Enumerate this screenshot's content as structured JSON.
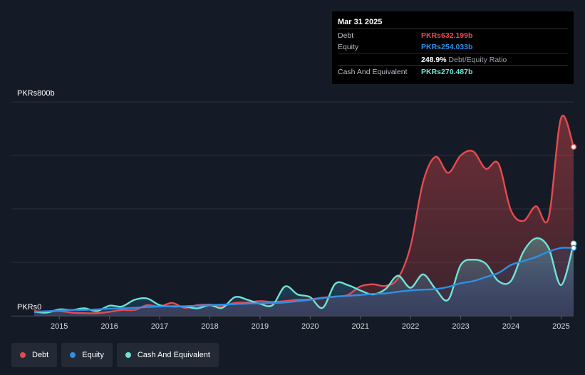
{
  "tooltip": {
    "date": "Mar 31 2025",
    "debt_label": "Debt",
    "debt_value": "PKRs632.199b",
    "equity_label": "Equity",
    "equity_value": "PKRs254.033b",
    "ratio_value": "248.9%",
    "ratio_label": "Debt/Equity Ratio",
    "cash_label": "Cash And Equivalent",
    "cash_value": "PKRs270.487b"
  },
  "colors": {
    "debt": "#e64a4f",
    "equity": "#2e8fe6",
    "cash": "#6fe3d5",
    "background": "#151b26",
    "grid": "#2b313b"
  },
  "chart_data": {
    "type": "area",
    "y_top_label": "PKRs800b",
    "y_bottom_label": "PKRs0",
    "ylim": [
      0,
      800
    ],
    "gridlines": [
      0,
      200,
      400,
      600,
      800
    ],
    "x_ticks": [
      "2015",
      "2016",
      "2017",
      "2018",
      "2019",
      "2020",
      "2021",
      "2022",
      "2023",
      "2024",
      "2025"
    ],
    "x_tick_values": [
      2015,
      2016,
      2017,
      2018,
      2019,
      2020,
      2021,
      2022,
      2023,
      2024,
      2025
    ],
    "xlim": [
      2014.5,
      2025.25
    ],
    "series": [
      {
        "name": "Debt",
        "key": "debt",
        "values": [
          [
            2014.5,
            18
          ],
          [
            2014.75,
            15
          ],
          [
            2015.0,
            18
          ],
          [
            2015.25,
            12
          ],
          [
            2015.5,
            10
          ],
          [
            2015.75,
            10
          ],
          [
            2016.0,
            15
          ],
          [
            2016.25,
            22
          ],
          [
            2016.5,
            22
          ],
          [
            2016.75,
            40
          ],
          [
            2017.0,
            35
          ],
          [
            2017.25,
            48
          ],
          [
            2017.5,
            30
          ],
          [
            2017.75,
            40
          ],
          [
            2018.0,
            42
          ],
          [
            2018.25,
            38
          ],
          [
            2018.5,
            48
          ],
          [
            2018.75,
            50
          ],
          [
            2019.0,
            55
          ],
          [
            2019.25,
            52
          ],
          [
            2019.5,
            55
          ],
          [
            2019.75,
            60
          ],
          [
            2020.0,
            62
          ],
          [
            2020.25,
            68
          ],
          [
            2020.5,
            72
          ],
          [
            2020.75,
            78
          ],
          [
            2021.0,
            110
          ],
          [
            2021.25,
            118
          ],
          [
            2021.5,
            112
          ],
          [
            2021.75,
            140
          ],
          [
            2022.0,
            260
          ],
          [
            2022.25,
            500
          ],
          [
            2022.5,
            595
          ],
          [
            2022.75,
            535
          ],
          [
            2023.0,
            600
          ],
          [
            2023.25,
            615
          ],
          [
            2023.5,
            550
          ],
          [
            2023.75,
            570
          ],
          [
            2024.0,
            395
          ],
          [
            2024.25,
            355
          ],
          [
            2024.5,
            410
          ],
          [
            2024.75,
            365
          ],
          [
            2025.0,
            740
          ],
          [
            2025.25,
            632
          ]
        ]
      },
      {
        "name": "Equity",
        "key": "equity",
        "values": [
          [
            2014.5,
            15
          ],
          [
            2014.75,
            17
          ],
          [
            2015.0,
            20
          ],
          [
            2015.25,
            22
          ],
          [
            2015.5,
            22
          ],
          [
            2015.75,
            24
          ],
          [
            2016.0,
            27
          ],
          [
            2016.25,
            28
          ],
          [
            2016.5,
            30
          ],
          [
            2016.75,
            33
          ],
          [
            2017.0,
            35
          ],
          [
            2017.25,
            36
          ],
          [
            2017.5,
            36
          ],
          [
            2017.75,
            38
          ],
          [
            2018.0,
            40
          ],
          [
            2018.25,
            42
          ],
          [
            2018.5,
            44
          ],
          [
            2018.75,
            46
          ],
          [
            2019.0,
            47
          ],
          [
            2019.25,
            48
          ],
          [
            2019.5,
            50
          ],
          [
            2019.75,
            55
          ],
          [
            2020.0,
            60
          ],
          [
            2020.25,
            66
          ],
          [
            2020.5,
            72
          ],
          [
            2020.75,
            75
          ],
          [
            2021.0,
            78
          ],
          [
            2021.25,
            82
          ],
          [
            2021.5,
            84
          ],
          [
            2021.75,
            90
          ],
          [
            2022.0,
            95
          ],
          [
            2022.25,
            98
          ],
          [
            2022.5,
            100
          ],
          [
            2022.75,
            108
          ],
          [
            2023.0,
            122
          ],
          [
            2023.25,
            130
          ],
          [
            2023.5,
            145
          ],
          [
            2023.75,
            160
          ],
          [
            2024.0,
            190
          ],
          [
            2024.25,
            205
          ],
          [
            2024.5,
            220
          ],
          [
            2024.75,
            240
          ],
          [
            2025.0,
            254
          ],
          [
            2025.25,
            254
          ]
        ]
      },
      {
        "name": "Cash And Equivalent",
        "key": "cash",
        "values": [
          [
            2014.5,
            15
          ],
          [
            2014.75,
            12
          ],
          [
            2015.0,
            24
          ],
          [
            2015.25,
            22
          ],
          [
            2015.5,
            28
          ],
          [
            2015.75,
            18
          ],
          [
            2016.0,
            38
          ],
          [
            2016.25,
            35
          ],
          [
            2016.5,
            60
          ],
          [
            2016.75,
            65
          ],
          [
            2017.0,
            40
          ],
          [
            2017.25,
            35
          ],
          [
            2017.5,
            35
          ],
          [
            2017.75,
            28
          ],
          [
            2018.0,
            40
          ],
          [
            2018.25,
            30
          ],
          [
            2018.5,
            70
          ],
          [
            2018.75,
            60
          ],
          [
            2019.0,
            45
          ],
          [
            2019.25,
            40
          ],
          [
            2019.5,
            110
          ],
          [
            2019.75,
            80
          ],
          [
            2020.0,
            70
          ],
          [
            2020.25,
            30
          ],
          [
            2020.5,
            120
          ],
          [
            2020.75,
            115
          ],
          [
            2021.0,
            95
          ],
          [
            2021.25,
            80
          ],
          [
            2021.5,
            100
          ],
          [
            2021.75,
            150
          ],
          [
            2022.0,
            105
          ],
          [
            2022.25,
            155
          ],
          [
            2022.5,
            100
          ],
          [
            2022.75,
            60
          ],
          [
            2023.0,
            190
          ],
          [
            2023.25,
            210
          ],
          [
            2023.5,
            195
          ],
          [
            2023.75,
            130
          ],
          [
            2024.0,
            130
          ],
          [
            2024.25,
            240
          ],
          [
            2024.5,
            290
          ],
          [
            2024.75,
            255
          ],
          [
            2025.0,
            115
          ],
          [
            2025.25,
            270
          ]
        ]
      }
    ]
  }
}
